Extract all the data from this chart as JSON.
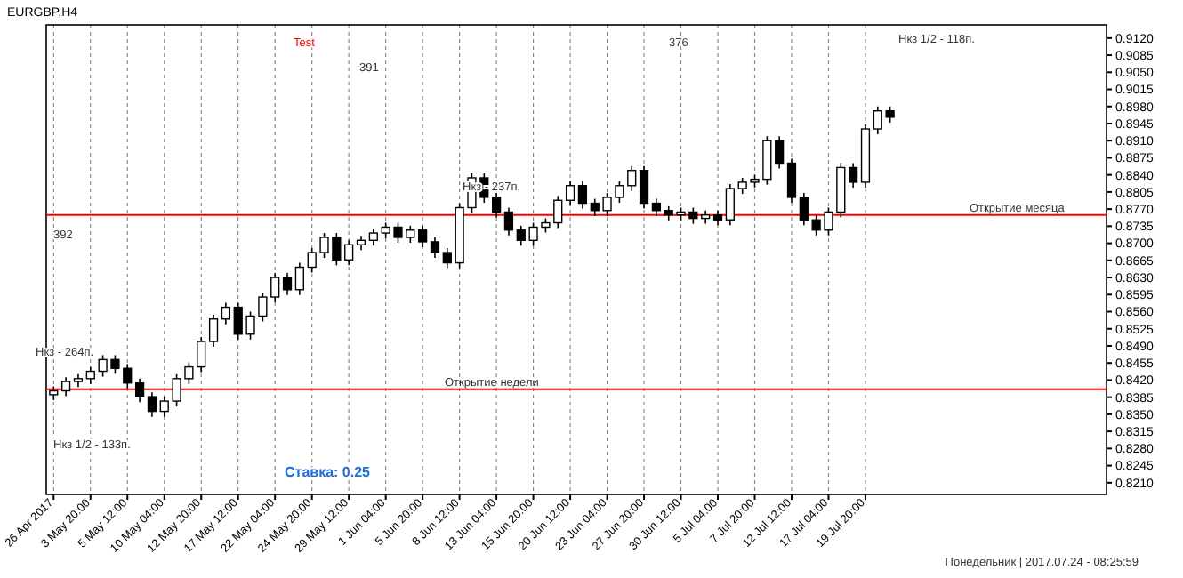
{
  "chart_data": {
    "type": "candlestick",
    "title": "EURGBP,H4",
    "categories": [
      "26 Apr 2017",
      null,
      null,
      "3 May 20:00",
      null,
      null,
      "5 May 12:00",
      null,
      null,
      "10 May 04:00",
      null,
      null,
      "12 May 20:00",
      null,
      null,
      "17 May 12:00",
      null,
      null,
      "22 May 04:00",
      null,
      null,
      "24 May 20:00",
      null,
      null,
      "29 May 12:00",
      null,
      null,
      "1 Jun 04:00",
      null,
      null,
      "5 Jun 20:00",
      null,
      null,
      "8 Jun 12:00",
      null,
      null,
      "13 Jun 04:00",
      null,
      null,
      "15 Jun 20:00",
      null,
      null,
      "20 Jun 12:00",
      null,
      null,
      "23 Jun 04:00",
      null,
      null,
      "27 Jun 20:00",
      null,
      null,
      "30 Jun 12:00",
      null,
      null,
      "5 Jul 04:00",
      null,
      null,
      "7 Jul 20:00",
      null,
      null,
      "12 Jul 12:00",
      null,
      null,
      "17 Jul 04:00",
      null,
      null,
      "19 Jul 20:00",
      null,
      null,
      null,
      null,
      null,
      null,
      null,
      null,
      null,
      null,
      null,
      null,
      null,
      null,
      null,
      null,
      null,
      null,
      null
    ],
    "ohlc": [
      [
        0.839,
        0.8407,
        0.8379,
        0.8398
      ],
      [
        0.8398,
        0.8426,
        0.8387,
        0.8417
      ],
      [
        0.8417,
        0.8432,
        0.8406,
        0.8423
      ],
      [
        0.8423,
        0.8447,
        0.8412,
        0.8438
      ],
      [
        0.8438,
        0.8471,
        0.8427,
        0.8462
      ],
      [
        0.8462,
        0.8471,
        0.8433,
        0.8444
      ],
      [
        0.8444,
        0.8453,
        0.8403,
        0.8414
      ],
      [
        0.8414,
        0.8423,
        0.8375,
        0.8386
      ],
      [
        0.8386,
        0.8395,
        0.8345,
        0.8356
      ],
      [
        0.8356,
        0.8386,
        0.8345,
        0.8377
      ],
      [
        0.8377,
        0.8432,
        0.8366,
        0.8423
      ],
      [
        0.8423,
        0.8456,
        0.8412,
        0.8447
      ],
      [
        0.8447,
        0.8508,
        0.8436,
        0.8499
      ],
      [
        0.8499,
        0.8554,
        0.8488,
        0.8545
      ],
      [
        0.8545,
        0.8578,
        0.8534,
        0.8569
      ],
      [
        0.8569,
        0.8578,
        0.8503,
        0.8514
      ],
      [
        0.8514,
        0.856,
        0.8503,
        0.8551
      ],
      [
        0.8551,
        0.8599,
        0.854,
        0.859
      ],
      [
        0.859,
        0.8639,
        0.8579,
        0.863
      ],
      [
        0.863,
        0.8639,
        0.8594,
        0.8605
      ],
      [
        0.8605,
        0.866,
        0.8594,
        0.8651
      ],
      [
        0.8651,
        0.869,
        0.864,
        0.8681
      ],
      [
        0.8681,
        0.8721,
        0.867,
        0.8712
      ],
      [
        0.8712,
        0.8721,
        0.8655,
        0.8666
      ],
      [
        0.8666,
        0.8706,
        0.8655,
        0.8697
      ],
      [
        0.8697,
        0.8715,
        0.8686,
        0.8706
      ],
      [
        0.8706,
        0.873,
        0.8695,
        0.8721
      ],
      [
        0.8721,
        0.8742,
        0.871,
        0.8733
      ],
      [
        0.8733,
        0.8742,
        0.8701,
        0.8712
      ],
      [
        0.8712,
        0.8736,
        0.8701,
        0.8727
      ],
      [
        0.8727,
        0.8736,
        0.8692,
        0.8703
      ],
      [
        0.8703,
        0.8712,
        0.867,
        0.8681
      ],
      [
        0.8681,
        0.869,
        0.8649,
        0.866
      ],
      [
        0.866,
        0.8782,
        0.8649,
        0.8773
      ],
      [
        0.8773,
        0.8843,
        0.8762,
        0.8834
      ],
      [
        0.8834,
        0.8843,
        0.8783,
        0.8794
      ],
      [
        0.8794,
        0.8803,
        0.8753,
        0.8764
      ],
      [
        0.8764,
        0.8773,
        0.8716,
        0.8727
      ],
      [
        0.8727,
        0.8736,
        0.8695,
        0.8706
      ],
      [
        0.8706,
        0.8742,
        0.8695,
        0.8733
      ],
      [
        0.8733,
        0.8751,
        0.8722,
        0.8742
      ],
      [
        0.8742,
        0.8797,
        0.8731,
        0.8788
      ],
      [
        0.8788,
        0.8827,
        0.8777,
        0.8818
      ],
      [
        0.8818,
        0.8827,
        0.8771,
        0.8782
      ],
      [
        0.8782,
        0.8791,
        0.8756,
        0.8767
      ],
      [
        0.8767,
        0.8803,
        0.8756,
        0.8794
      ],
      [
        0.8794,
        0.8827,
        0.8783,
        0.8818
      ],
      [
        0.8818,
        0.8858,
        0.8807,
        0.8849
      ],
      [
        0.8849,
        0.8858,
        0.8771,
        0.8782
      ],
      [
        0.8782,
        0.8791,
        0.8756,
        0.8767
      ],
      [
        0.8767,
        0.8776,
        0.8747,
        0.8758
      ],
      [
        0.8758,
        0.8773,
        0.8747,
        0.8764
      ],
      [
        0.8764,
        0.8773,
        0.874,
        0.8751
      ],
      [
        0.8751,
        0.8767,
        0.874,
        0.8758
      ],
      [
        0.8758,
        0.8767,
        0.8737,
        0.8748
      ],
      [
        0.8748,
        0.8821,
        0.8737,
        0.8812
      ],
      [
        0.8812,
        0.8834,
        0.8801,
        0.8825
      ],
      [
        0.8825,
        0.884,
        0.8814,
        0.8831
      ],
      [
        0.8831,
        0.8919,
        0.882,
        0.891
      ],
      [
        0.891,
        0.8919,
        0.8853,
        0.8864
      ],
      [
        0.8864,
        0.8873,
        0.8783,
        0.8794
      ],
      [
        0.8794,
        0.8803,
        0.8737,
        0.8748
      ],
      [
        0.8748,
        0.8757,
        0.8716,
        0.8727
      ],
      [
        0.8727,
        0.8773,
        0.8716,
        0.8764
      ],
      [
        0.8764,
        0.8864,
        0.8753,
        0.8855
      ],
      [
        0.8855,
        0.8864,
        0.8814,
        0.8825
      ],
      [
        0.8825,
        0.8943,
        0.8814,
        0.8934
      ],
      [
        0.8934,
        0.898,
        0.8923,
        0.8971
      ],
      [
        0.8971,
        0.898,
        0.8947,
        0.8958
      ],
      null,
      null,
      null,
      null,
      null,
      null,
      null,
      null,
      null,
      null,
      null,
      null,
      null,
      null,
      null,
      null,
      null
    ],
    "color": "#000000",
    "ylim": [
      0.8186,
      0.9147
    ],
    "yticks": [
      {
        "value": 0.821,
        "label": "0.8210"
      },
      {
        "value": 0.8245,
        "label": "0.8245"
      },
      {
        "value": 0.828,
        "label": "0.8280"
      },
      {
        "value": 0.8315,
        "label": "0.8315"
      },
      {
        "value": 0.835,
        "label": "0.8350"
      },
      {
        "value": 0.8385,
        "label": "0.8385"
      },
      {
        "value": 0.842,
        "label": "0.8420"
      },
      {
        "value": 0.8455,
        "label": "0.8455"
      },
      {
        "value": 0.849,
        "label": "0.8490"
      },
      {
        "value": 0.8525,
        "label": "0.8525"
      },
      {
        "value": 0.856,
        "label": "0.8560"
      },
      {
        "value": 0.8595,
        "label": "0.8595"
      },
      {
        "value": 0.863,
        "label": "0.8630"
      },
      {
        "value": 0.8665,
        "label": "0.8665"
      },
      {
        "value": 0.87,
        "label": "0.8700"
      },
      {
        "value": 0.8735,
        "label": "0.8735"
      },
      {
        "value": 0.877,
        "label": "0.8770"
      },
      {
        "value": 0.8805,
        "label": "0.8805"
      },
      {
        "value": 0.884,
        "label": "0.8840"
      },
      {
        "value": 0.8875,
        "label": "0.8875"
      },
      {
        "value": 0.891,
        "label": "0.8910"
      },
      {
        "value": 0.8945,
        "label": "0.8945"
      },
      {
        "value": 0.898,
        "label": "0.8980"
      },
      {
        "value": 0.9015,
        "label": "0.9015"
      },
      {
        "value": 0.905,
        "label": "0.9050"
      },
      {
        "value": 0.9085,
        "label": "0.9085"
      },
      {
        "value": 0.912,
        "label": "0.9120"
      }
    ],
    "ref_lines": [
      {
        "axis": "y",
        "value": 0.8758,
        "label": "Открытие месяца",
        "color": "#ff0000"
      },
      {
        "axis": "y",
        "value": 0.8401,
        "label": "Открытие недели",
        "color": "#ff0000"
      }
    ],
    "annotations": [
      "Test",
      "391",
      "392",
      "376",
      "Нкз - 237п.",
      "Нкз - 264п.",
      "Нкз 1/2 - 118п.",
      "Нкз 1/2 - 133п.",
      "Ставка: 0.25",
      "Понедельник | 2017.07.24 - 08:25:59"
    ],
    "grid": "x"
  }
}
